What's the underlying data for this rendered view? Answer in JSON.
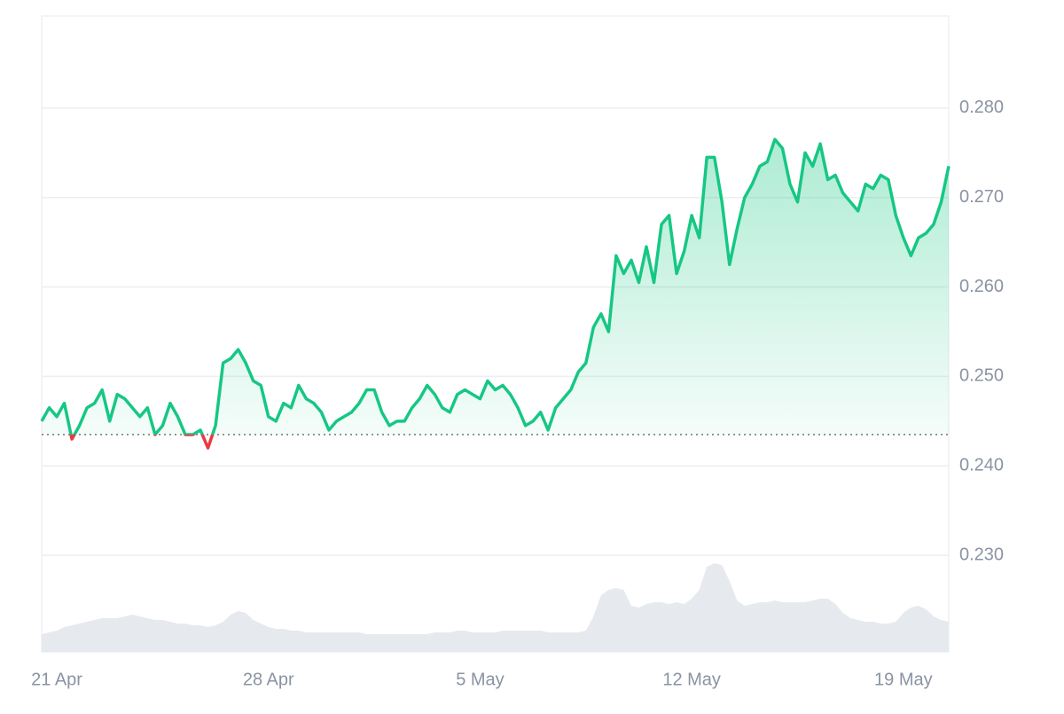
{
  "chart_data": {
    "type": "line",
    "categories": [
      null,
      null,
      "21 Apr",
      null,
      null,
      null,
      null,
      null,
      null,
      null,
      null,
      null,
      null,
      null,
      null,
      null,
      null,
      null,
      null,
      null,
      null,
      null,
      null,
      null,
      null,
      null,
      null,
      null,
      null,
      null,
      "28 Apr",
      null,
      null,
      null,
      null,
      null,
      null,
      null,
      null,
      null,
      null,
      null,
      null,
      null,
      null,
      null,
      null,
      null,
      null,
      null,
      null,
      null,
      null,
      null,
      null,
      null,
      null,
      null,
      "5 May",
      null,
      null,
      null,
      null,
      null,
      null,
      null,
      null,
      null,
      null,
      null,
      null,
      null,
      null,
      null,
      null,
      null,
      null,
      null,
      null,
      null,
      null,
      null,
      null,
      null,
      null,
      null,
      "12 May",
      null,
      null,
      null,
      null,
      null,
      null,
      null,
      null,
      null,
      null,
      null,
      null,
      null,
      null,
      null,
      null,
      null,
      null,
      null,
      null,
      null,
      null,
      null,
      null,
      null,
      null,
      null,
      "19 May",
      null,
      null,
      null,
      null,
      null,
      null
    ],
    "values": [
      0.245,
      0.2465,
      0.2455,
      0.247,
      0.243,
      0.2445,
      0.2465,
      0.247,
      0.2485,
      0.245,
      0.248,
      0.2475,
      0.2465,
      0.2455,
      0.2465,
      0.2435,
      0.2445,
      0.247,
      0.2455,
      0.2435,
      0.2435,
      0.244,
      0.242,
      0.2445,
      0.2515,
      0.252,
      0.253,
      0.2515,
      0.2495,
      0.249,
      0.2455,
      0.245,
      0.247,
      0.2465,
      0.249,
      0.2475,
      0.247,
      0.246,
      0.244,
      0.245,
      0.2455,
      0.246,
      0.247,
      0.2485,
      0.2485,
      0.246,
      0.2445,
      0.245,
      0.245,
      0.2465,
      0.2475,
      0.249,
      0.248,
      0.2465,
      0.246,
      0.248,
      0.2485,
      0.248,
      0.2475,
      0.2495,
      0.2485,
      0.249,
      0.248,
      0.2465,
      0.2445,
      0.245,
      0.246,
      0.244,
      0.2465,
      0.2475,
      0.2485,
      0.2505,
      0.2515,
      0.2555,
      0.257,
      0.255,
      0.2635,
      0.2615,
      0.263,
      0.2605,
      0.2645,
      0.2605,
      0.267,
      0.268,
      0.2615,
      0.264,
      0.268,
      0.2655,
      0.2745,
      0.2745,
      0.2695,
      0.2625,
      0.2665,
      0.27,
      0.2715,
      0.2735,
      0.274,
      0.2765,
      0.2755,
      0.2715,
      0.2695,
      0.275,
      0.2735,
      0.276,
      0.272,
      0.2725,
      0.2705,
      0.2695,
      0.2685,
      0.2715,
      0.271,
      0.2725,
      0.272,
      0.268,
      0.2655,
      0.2635,
      0.2655,
      0.266,
      0.267,
      0.2695,
      0.2735
    ],
    "volumes": [
      20,
      22,
      24,
      28,
      30,
      32,
      34,
      36,
      38,
      38,
      38,
      40,
      42,
      40,
      38,
      36,
      36,
      34,
      32,
      32,
      30,
      30,
      28,
      30,
      34,
      42,
      46,
      44,
      36,
      32,
      28,
      26,
      26,
      24,
      24,
      22,
      22,
      22,
      22,
      22,
      22,
      22,
      22,
      20,
      20,
      20,
      20,
      20,
      20,
      20,
      20,
      20,
      22,
      22,
      22,
      24,
      24,
      22,
      22,
      22,
      22,
      24,
      24,
      24,
      24,
      24,
      24,
      22,
      22,
      22,
      22,
      22,
      24,
      40,
      64,
      70,
      72,
      70,
      52,
      50,
      54,
      56,
      56,
      54,
      56,
      54,
      60,
      70,
      96,
      100,
      98,
      80,
      58,
      52,
      54,
      56,
      56,
      58,
      56,
      56,
      56,
      56,
      58,
      60,
      60,
      54,
      44,
      38,
      36,
      34,
      34,
      32,
      32,
      34,
      44,
      50,
      52,
      48,
      40,
      36,
      34
    ],
    "baseline": 0.2435,
    "ylim": [
      0.2192,
      0.2903
    ],
    "yticks": [
      {
        "value": 0.23,
        "label": "0.230"
      },
      {
        "value": 0.24,
        "label": "0.240"
      },
      {
        "value": 0.25,
        "label": "0.250"
      },
      {
        "value": 0.26,
        "label": "0.260"
      },
      {
        "value": 0.27,
        "label": "0.270"
      },
      {
        "value": 0.28,
        "label": "0.280"
      }
    ],
    "grid": true,
    "up_color": "#16c784",
    "down_color": "#ea3943",
    "volume_color": "#e6e9ee"
  }
}
